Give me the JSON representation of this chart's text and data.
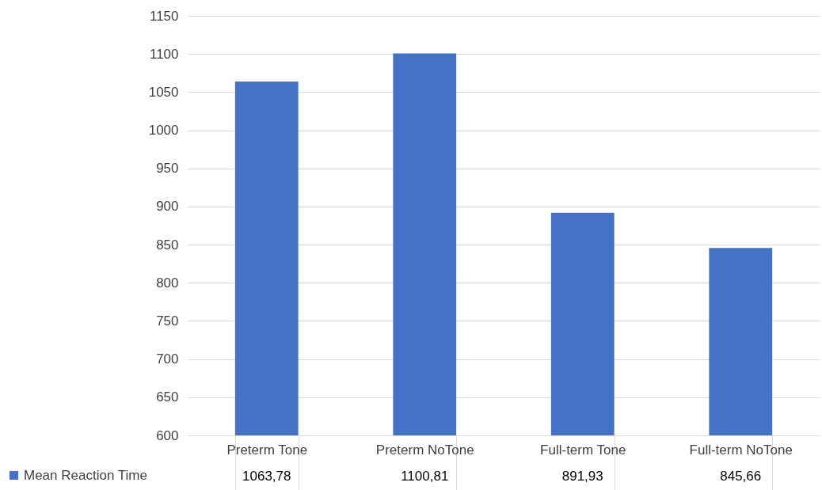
{
  "chart_data": {
    "type": "bar",
    "categories": [
      "Preterm Tone",
      "Preterm NoTone",
      "Full-term Tone",
      "Full-term NoTone"
    ],
    "series": [
      {
        "name": "Mean Reaction Time",
        "color": "#4472c4",
        "values": [
          1063.78,
          1100.81,
          891.93,
          845.66
        ],
        "value_labels": [
          "1063,78",
          "1100,81",
          "891,93",
          "845,66"
        ]
      }
    ],
    "ylim": [
      600,
      1150
    ],
    "yticks": [
      600,
      650,
      700,
      750,
      800,
      850,
      900,
      950,
      1000,
      1050,
      1100,
      1150
    ],
    "grid": "y",
    "legend": "bottom left"
  }
}
